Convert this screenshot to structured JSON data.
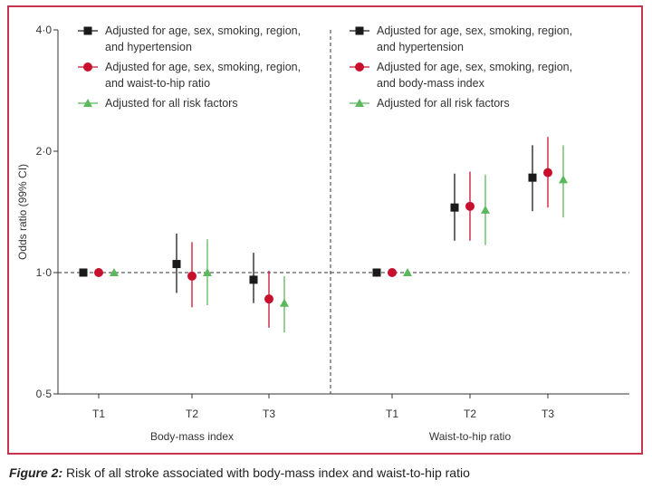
{
  "caption": {
    "label": "Figure 2:",
    "text": "Risk of all stroke associated with body-mass index and waist-to-hip ratio"
  },
  "colors": {
    "black": "#1a1a1a",
    "red": "#c8102e",
    "green": "#5cb85c"
  },
  "chart_data": {
    "type": "scatter",
    "ylabel": "Odds ratio (99% CI)",
    "yscale": "log",
    "ylim": [
      0.5,
      4.0
    ],
    "yticks": [
      0.5,
      1.0,
      2.0,
      4.0
    ],
    "ytick_labels": [
      "0·5",
      "1·0",
      "2·0",
      "4·0"
    ],
    "reference_line": 1.0,
    "panels": [
      {
        "xlabel": "Body-mass index",
        "categories": [
          "T1",
          "T2",
          "T3"
        ],
        "series": [
          {
            "name": "Adjusted for age, sex, smoking, region, and hypertension",
            "marker": "square",
            "color": "black",
            "values": [
              1.0,
              1.05,
              0.96
            ],
            "lower": [
              1.0,
              0.89,
              0.84
            ],
            "upper": [
              1.0,
              1.25,
              1.12
            ]
          },
          {
            "name": "Adjusted for age, sex, smoking, region, and waist-to-hip ratio",
            "marker": "circle",
            "color": "red",
            "values": [
              1.0,
              0.98,
              0.86
            ],
            "lower": [
              1.0,
              0.82,
              0.73
            ],
            "upper": [
              1.0,
              1.19,
              1.01
            ]
          },
          {
            "name": "Adjusted for all risk factors",
            "marker": "triangle",
            "color": "green",
            "values": [
              1.0,
              1.0,
              0.84
            ],
            "lower": [
              1.0,
              0.83,
              0.71
            ],
            "upper": [
              1.0,
              1.21,
              0.98
            ]
          }
        ]
      },
      {
        "xlabel": "Waist-to-hip ratio",
        "categories": [
          "T1",
          "T2",
          "T3"
        ],
        "series": [
          {
            "name": "Adjusted for age, sex, smoking, region, and hypertension",
            "marker": "square",
            "color": "black",
            "values": [
              1.0,
              1.45,
              1.72
            ],
            "lower": [
              1.0,
              1.2,
              1.42
            ],
            "upper": [
              1.0,
              1.76,
              2.07
            ]
          },
          {
            "name": "Adjusted for age, sex, smoking, region, and body-mass index",
            "marker": "circle",
            "color": "red",
            "values": [
              1.0,
              1.46,
              1.77
            ],
            "lower": [
              1.0,
              1.2,
              1.45
            ],
            "upper": [
              1.0,
              1.78,
              2.17
            ]
          },
          {
            "name": "Adjusted for all risk factors",
            "marker": "triangle",
            "color": "green",
            "values": [
              1.0,
              1.43,
              1.7
            ],
            "lower": [
              1.0,
              1.17,
              1.37
            ],
            "upper": [
              1.0,
              1.75,
              2.07
            ]
          }
        ]
      }
    ],
    "legends": [
      [
        "Adjusted for age, sex, smoking, region,",
        "and hypertension",
        "Adjusted for age, sex, smoking, region,",
        "and waist-to-hip ratio",
        "Adjusted for all risk factors"
      ],
      [
        "Adjusted for age, sex, smoking, region,",
        "and hypertension",
        "Adjusted for age, sex, smoking, region,",
        "and body-mass index",
        "Adjusted for all risk factors"
      ]
    ]
  }
}
